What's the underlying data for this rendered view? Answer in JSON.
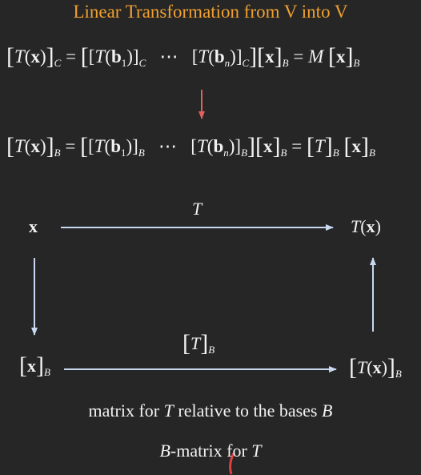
{
  "title": "Linear Transformation from V into V",
  "equation1": {
    "lhs": "T(x)",
    "lhs_basis": "C",
    "cols": [
      "T(b1)",
      "T(bn)"
    ],
    "col_basis": "C",
    "dots": "⋯",
    "x_vec": "x",
    "x_basis": "B",
    "matrix": "M"
  },
  "equation2": {
    "lhs": "T(x)",
    "lhs_basis": "B",
    "cols": [
      "T(b1)",
      "T(bn)"
    ],
    "col_basis": "B",
    "dots": "⋯",
    "x_vec": "x",
    "x_basis": "B",
    "matrix": "T"
  },
  "diagram": {
    "top_left": "x",
    "top_right": "T(x)",
    "top_arrow_label": "T",
    "bottom_left": "x",
    "bottom_left_basis": "B",
    "bottom_right": "T(x)",
    "bottom_right_basis": "B",
    "bottom_arrow_label": "T",
    "bottom_arrow_label_basis": "B"
  },
  "caption1_pre": "matrix for",
  "caption1_var": "T",
  "caption1_post": "relative to the bases",
  "caption1_basis": "B",
  "caption2_basis": "B",
  "caption2_text": "-matrix for",
  "caption2_var": "T",
  "colors": {
    "background": "#262626",
    "title": "#f0a030",
    "text": "#f2f2f2",
    "down_arrow": "#e06060",
    "diagram_arrows": "#c8d8f0"
  }
}
